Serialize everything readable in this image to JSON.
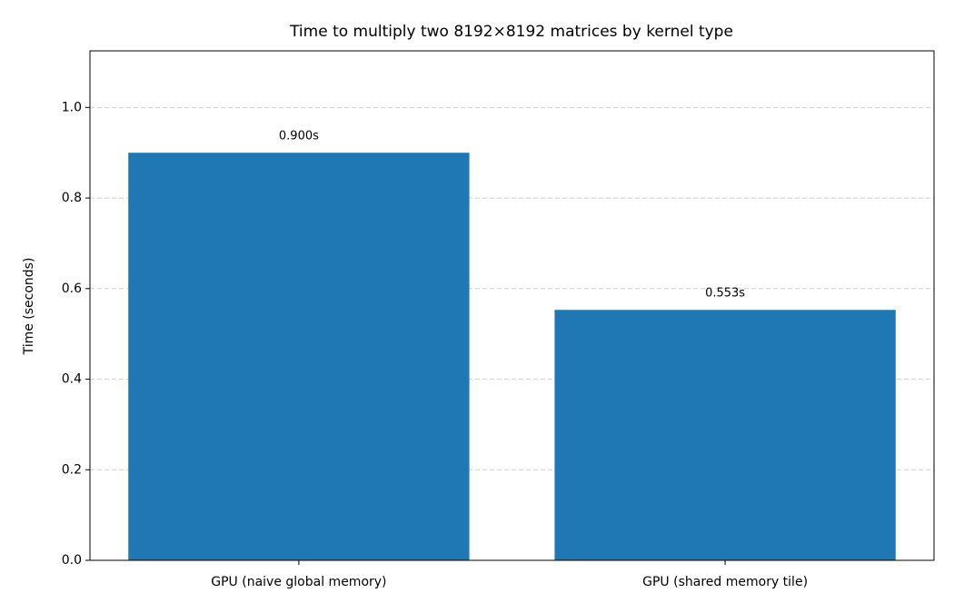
{
  "chart_data": {
    "type": "bar",
    "title": "Time to multiply two 8192×8192 matrices by kernel type",
    "y_label": "Time (seconds)",
    "categories": [
      "GPU (naive global memory)",
      "GPU (shared memory tile)"
    ],
    "values": [
      0.9,
      0.553
    ],
    "value_labels": [
      "0.900s",
      "0.553s"
    ],
    "color": "#1f77b4",
    "ylim": [
      0,
      1.125
    ],
    "yticks": [
      {
        "value": 0,
        "label": "0.0"
      },
      0.2,
      0.4,
      0.6,
      0.8,
      {
        "value": 1,
        "label": "1.0"
      }
    ],
    "grid": true
  }
}
